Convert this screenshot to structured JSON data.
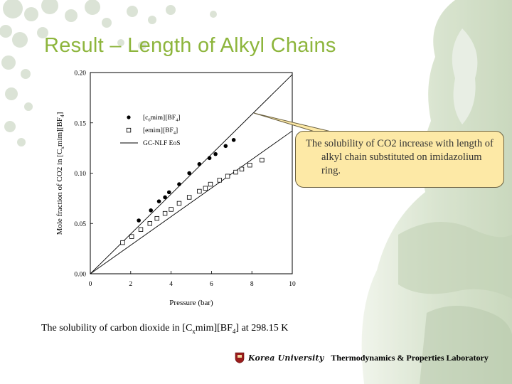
{
  "slide": {
    "title": "Result – Length of Alkyl Chains",
    "callout_text": "The solubility of CO2 increase with length of alkyl chain substituted on imidazolium ring.",
    "caption_prefix": "The solubility of carbon dioxide in [C",
    "caption_sub": "x",
    "caption_mid": "mim][BF",
    "caption_sub2": "4",
    "caption_suffix": "] at 298.15 K",
    "footer_university": "Korea University",
    "footer_lab": "Thermodynamics & Properties Laboratory",
    "title_color": "#8db53c",
    "callout_fill": "#fde9a6"
  },
  "chart_data": {
    "type": "scatter",
    "xlabel": "Pressure (bar)",
    "ylabel_main": "Mole fraction of CO2 in [C",
    "ylabel_sub": "x",
    "ylabel_mid": "mim][BF",
    "ylabel_sub2": "4",
    "ylabel_end": "]",
    "xlim": [
      0,
      10
    ],
    "ylim": [
      0,
      0.2
    ],
    "xticks": [
      "0",
      "2",
      "4",
      "6",
      "8",
      "10"
    ],
    "yticks": [
      "0.00",
      "0.05",
      "0.10",
      "0.15",
      "0.20"
    ],
    "legend_placement": "upper-left inside",
    "series": [
      {
        "name_main": "[c",
        "name_sub": "6",
        "name_mid": "mim][BF",
        "name_sub2": "4",
        "name_end": "]",
        "marker": "filled-circle",
        "points": [
          [
            2.4,
            0.053
          ],
          [
            3.0,
            0.063
          ],
          [
            3.4,
            0.072
          ],
          [
            3.7,
            0.076
          ],
          [
            3.9,
            0.081
          ],
          [
            4.4,
            0.089
          ],
          [
            4.9,
            0.1
          ],
          [
            5.4,
            0.109
          ],
          [
            5.9,
            0.115
          ],
          [
            6.2,
            0.119
          ],
          [
            6.7,
            0.127
          ],
          [
            7.1,
            0.133
          ]
        ]
      },
      {
        "name": "[emim][BF",
        "name_sub2": "4",
        "name_end": "]",
        "marker": "open-square",
        "points": [
          [
            1.6,
            0.031
          ],
          [
            2.05,
            0.037
          ],
          [
            2.5,
            0.044
          ],
          [
            2.95,
            0.05
          ],
          [
            3.3,
            0.055
          ],
          [
            3.7,
            0.06
          ],
          [
            4.0,
            0.064
          ],
          [
            4.4,
            0.07
          ],
          [
            4.9,
            0.076
          ],
          [
            5.4,
            0.082
          ],
          [
            5.7,
            0.085
          ],
          [
            5.95,
            0.089
          ],
          [
            6.4,
            0.093
          ],
          [
            6.8,
            0.097
          ],
          [
            7.2,
            0.101
          ],
          [
            7.5,
            0.104
          ],
          [
            7.9,
            0.108
          ],
          [
            8.5,
            0.113
          ]
        ]
      },
      {
        "name": "GC-NLF EoS",
        "marker": "line",
        "lines": [
          [
            [
              0,
              0
            ],
            [
              10,
              0.198
            ]
          ],
          [
            [
              0,
              0
            ],
            [
              10,
              0.142
            ]
          ]
        ]
      }
    ]
  }
}
